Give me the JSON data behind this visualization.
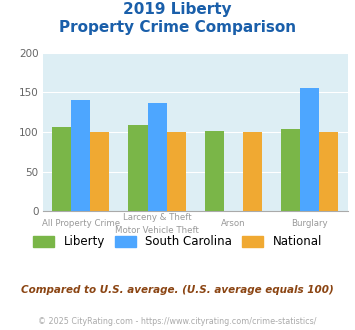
{
  "title_line1": "2019 Liberty",
  "title_line2": "Property Crime Comparison",
  "category_labels_line1": [
    "All Property Crime",
    "Larceny & Theft",
    "Arson",
    "Burglary"
  ],
  "category_labels_line2": [
    "",
    "Motor Vehicle Theft",
    "",
    ""
  ],
  "liberty_values": [
    106,
    109,
    101,
    104
  ],
  "sc_values": [
    140,
    136,
    0,
    156
  ],
  "national_values": [
    100,
    100,
    100,
    100
  ],
  "liberty_color": "#7ab648",
  "sc_color": "#4da6ff",
  "national_color": "#f0a932",
  "bg_color": "#ddeef4",
  "ylim": [
    0,
    200
  ],
  "yticks": [
    0,
    50,
    100,
    150,
    200
  ],
  "title_color": "#1a5faa",
  "subtitle_text": "Compared to U.S. average. (U.S. average equals 100)",
  "footer_text": "© 2025 CityRating.com - https://www.cityrating.com/crime-statistics/",
  "legend_labels": [
    "Liberty",
    "South Carolina",
    "National"
  ],
  "bar_width": 0.25
}
